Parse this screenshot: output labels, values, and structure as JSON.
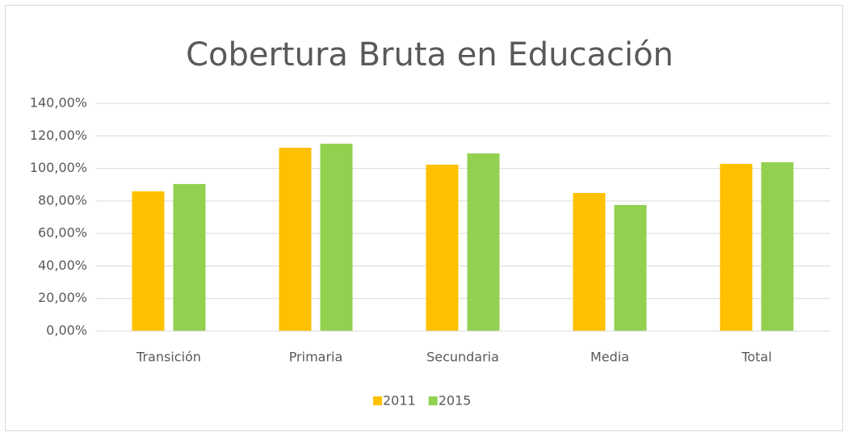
{
  "chart_data": {
    "type": "bar",
    "title": "Cobertura Bruta en Educación",
    "categories": [
      "Transición",
      "Primaria",
      "Secundaria",
      "Media",
      "Total"
    ],
    "series": [
      {
        "name": "2011",
        "color": "#ffc000",
        "values": [
          85.9,
          112.7,
          102.3,
          84.9,
          102.8
        ]
      },
      {
        "name": "2015",
        "color": "#92d050",
        "values": [
          90.4,
          115.2,
          109.2,
          77.5,
          103.8
        ]
      }
    ],
    "ylim": [
      0,
      140
    ],
    "yticks": [
      {
        "value": 0,
        "label": "0,00%"
      },
      {
        "value": 20,
        "label": "20,00%"
      },
      {
        "value": 40,
        "label": "40,00%"
      },
      {
        "value": 60,
        "label": "60,00%"
      },
      {
        "value": 80,
        "label": "80,00%"
      },
      {
        "value": 100,
        "label": "100,00%"
      },
      {
        "value": 120,
        "label": "120,00%"
      },
      {
        "value": 140,
        "label": "140,00%"
      }
    ],
    "grid": true,
    "legend": "bottom"
  }
}
